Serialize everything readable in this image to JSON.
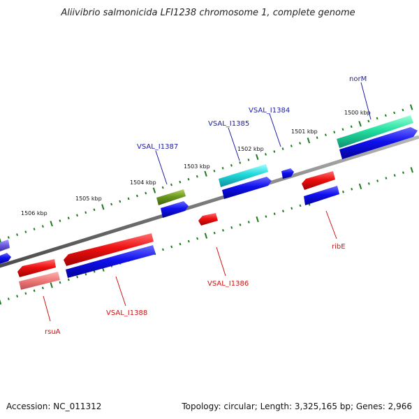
{
  "title": "Aliivibrio salmonicida LFI1238 chromosome 1, complete genome",
  "footer": {
    "accession": "Accession: NC_011312",
    "topology": "Topology: circular; Length: 3,325,165 bp; Genes: 2,966"
  },
  "colors": {
    "forward_cds": "#0000ee",
    "reverse_cds": "#ee0000",
    "backbone": "#7a7a7a",
    "tick": "#1a7a1a",
    "label_forward": "#1a1aa8",
    "label_reverse": "#d01010"
  },
  "scale_ticks": [
    "1506 kbp",
    "1505 kbp",
    "1504 kbp",
    "1503 kbp",
    "1502 kbp",
    "1501 kbp",
    "1500 kbp"
  ],
  "gene_labels": {
    "norM": "norM",
    "VSAL_I1384": "VSAL_I1384",
    "VSAL_I1385": "VSAL_I1385",
    "VSAL_I1387": "VSAL_I1387",
    "ribE": "ribE",
    "VSAL_I1386": "VSAL_I1386",
    "VSAL_I1388": "VSAL_I1388",
    "rsuA": "rsuA"
  }
}
